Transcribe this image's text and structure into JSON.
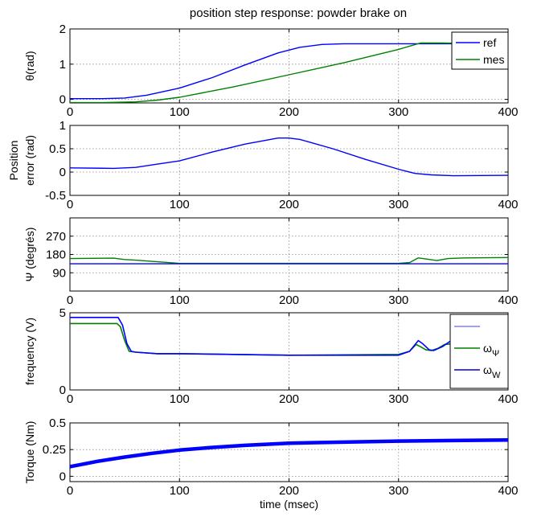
{
  "figure": {
    "title": "position step response: powder brake on"
  },
  "chart_data": [
    {
      "type": "line",
      "title": "position step response: powder brake on",
      "xlabel": "",
      "ylabel": "θ(rad)",
      "xlim": [
        0,
        400
      ],
      "ylim": [
        -0.1,
        2
      ],
      "xticks": [
        0,
        100,
        200,
        300,
        400
      ],
      "yticks": [
        0,
        1,
        2
      ],
      "grid": true,
      "legend": "top-right",
      "series": [
        {
          "name": "ref",
          "color": "#0000ff",
          "x": [
            0,
            30,
            50,
            70,
            100,
            130,
            160,
            190,
            210,
            230,
            250,
            300,
            330,
            350,
            400
          ],
          "y": [
            0.02,
            0.02,
            0.04,
            0.12,
            0.32,
            0.62,
            0.98,
            1.32,
            1.48,
            1.56,
            1.58,
            1.58,
            1.58,
            1.58,
            1.58
          ]
        },
        {
          "name": "mes",
          "color": "#008000",
          "x": [
            0,
            30,
            60,
            80,
            100,
            150,
            200,
            250,
            300,
            320,
            340,
            360,
            400
          ],
          "y": [
            -0.09,
            -0.09,
            -0.07,
            -0.02,
            0.06,
            0.36,
            0.7,
            1.04,
            1.42,
            1.6,
            1.6,
            1.59,
            1.58
          ]
        }
      ]
    },
    {
      "type": "line",
      "xlabel": "",
      "ylabel": "Position error (rad)",
      "xlim": [
        0,
        400
      ],
      "ylim": [
        -0.5,
        1
      ],
      "xticks": [
        0,
        100,
        200,
        300,
        400
      ],
      "yticks": [
        -0.5,
        0,
        0.5,
        1
      ],
      "grid": true,
      "series": [
        {
          "color": "#0000ff",
          "x": [
            0,
            40,
            60,
            80,
            100,
            130,
            160,
            190,
            200,
            210,
            240,
            270,
            300,
            315,
            330,
            350,
            400
          ],
          "y": [
            0.09,
            0.08,
            0.1,
            0.17,
            0.24,
            0.43,
            0.6,
            0.73,
            0.73,
            0.7,
            0.5,
            0.27,
            0.06,
            -0.03,
            -0.06,
            -0.08,
            -0.07
          ]
        }
      ]
    },
    {
      "type": "line",
      "xlabel": "",
      "ylabel": "Ψ (degrés)",
      "xlim": [
        0,
        400
      ],
      "ylim": [
        0,
        360
      ],
      "xticks": [
        0,
        100,
        200,
        300,
        400
      ],
      "yticks": [
        90,
        180,
        270
      ],
      "grid": true,
      "series": [
        {
          "color": "#008000",
          "x": [
            0,
            40,
            50,
            60,
            80,
            100,
            200,
            300,
            310,
            318,
            325,
            335,
            345,
            360,
            400
          ],
          "y": [
            160,
            162,
            155,
            152,
            144,
            136,
            136,
            136,
            140,
            163,
            158,
            150,
            160,
            163,
            165
          ]
        },
        {
          "color": "#0000ff",
          "x": [
            0,
            100,
            200,
            300,
            400
          ],
          "y": [
            134,
            134,
            134,
            134,
            134
          ]
        }
      ]
    },
    {
      "type": "line",
      "xlabel": "",
      "ylabel": "frequency (V)",
      "xlim": [
        0,
        400
      ],
      "ylim": [
        0,
        5
      ],
      "xticks": [
        0,
        100,
        200,
        300,
        400
      ],
      "yticks": [
        0,
        5
      ],
      "grid": true,
      "legend": "right",
      "legend_entries": [
        {
          "label": "",
          "sub": "",
          "color": "#7f7fff"
        },
        {
          "label": "ω",
          "sub": "Ψ",
          "color": "#008000"
        },
        {
          "label": "ω",
          "sub": "W",
          "color": "#0000cc"
        }
      ],
      "series": [
        {
          "color": "#008000",
          "x": [
            0,
            43,
            46,
            50,
            54,
            60,
            80,
            100,
            200,
            300,
            310,
            316,
            320,
            325,
            330,
            336,
            342,
            350
          ],
          "y": [
            4.3,
            4.3,
            4.1,
            3.2,
            2.5,
            2.45,
            2.35,
            2.35,
            2.25,
            2.3,
            2.5,
            2.95,
            2.8,
            2.6,
            2.55,
            2.7,
            2.95,
            3.0
          ]
        },
        {
          "color": "#0000ff",
          "x": [
            0,
            40,
            44,
            48,
            52,
            56,
            60,
            80,
            100,
            200,
            300,
            310,
            318,
            322,
            328,
            332,
            340,
            348,
            352
          ],
          "y": [
            4.7,
            4.7,
            4.7,
            4.2,
            3.0,
            2.5,
            2.45,
            2.35,
            2.35,
            2.25,
            2.25,
            2.5,
            3.2,
            3.0,
            2.6,
            2.55,
            2.8,
            3.2,
            3.25
          ]
        }
      ]
    },
    {
      "type": "line",
      "xlabel": "time (msec)",
      "ylabel": "Torque (Nm)",
      "xlim": [
        0,
        400
      ],
      "ylim": [
        -0.05,
        0.5
      ],
      "xticks": [
        0,
        100,
        200,
        300,
        400
      ],
      "yticks": [
        0,
        0.25,
        0.5
      ],
      "yticklabels": [
        "0",
        "0.25",
        "0.5"
      ],
      "grid": true,
      "series": [
        {
          "color": "#0000ff",
          "x": [
            0,
            10,
            25,
            50,
            75,
            100,
            130,
            160,
            200,
            250,
            300,
            350,
            400
          ],
          "y": [
            0.09,
            0.11,
            0.14,
            0.18,
            0.215,
            0.245,
            0.27,
            0.29,
            0.31,
            0.32,
            0.33,
            0.335,
            0.34
          ]
        }
      ]
    }
  ]
}
